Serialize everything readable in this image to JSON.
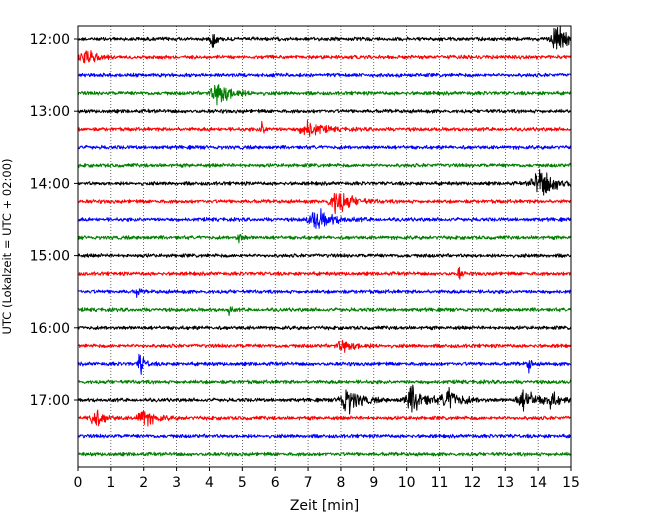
{
  "chart_data": {
    "type": "line",
    "subtype": "helicorder",
    "xlabel": "Zeit  [min]",
    "ylabel": "UTC (Lokalzeit = UTC + 02:00)",
    "xlim": [
      0,
      15
    ],
    "x_ticks": [
      "0",
      "1",
      "2",
      "3",
      "4",
      "5",
      "6",
      "7",
      "8",
      "9",
      "10",
      "11",
      "12",
      "13",
      "14",
      "15"
    ],
    "y_ticks": [
      "12:00",
      "13:00",
      "14:00",
      "15:00",
      "16:00",
      "17:00"
    ],
    "grid": "vertical dotted lines at each minute",
    "trace_colors": [
      "#000000",
      "#ff0000",
      "#0000ff",
      "#008000"
    ],
    "rows_per_hour": 4,
    "traces": [
      {
        "start": "12:00",
        "color": "#000000",
        "base_amplitude": 1.0,
        "events": [
          {
            "t": 4.1,
            "amp": 3.5,
            "dur": 0.15
          },
          {
            "t": 14.6,
            "amp": 4.5,
            "dur": 0.5
          }
        ]
      },
      {
        "start": "12:15",
        "color": "#ff0000",
        "base_amplitude": 1.0,
        "events": [
          {
            "t": 0.2,
            "amp": 3.5,
            "dur": 0.4
          }
        ]
      },
      {
        "start": "12:30",
        "color": "#0000ff",
        "base_amplitude": 1.0,
        "events": []
      },
      {
        "start": "12:45",
        "color": "#008000",
        "base_amplitude": 1.0,
        "events": [
          {
            "t": 4.3,
            "amp": 4.5,
            "dur": 0.6
          }
        ]
      },
      {
        "start": "13:00",
        "color": "#000000",
        "base_amplitude": 1.0,
        "events": []
      },
      {
        "start": "13:15",
        "color": "#ff0000",
        "base_amplitude": 1.0,
        "events": [
          {
            "t": 5.6,
            "amp": 2.5,
            "dur": 0.15
          },
          {
            "t": 7.0,
            "amp": 3.0,
            "dur": 0.6
          }
        ]
      },
      {
        "start": "13:30",
        "color": "#0000ff",
        "base_amplitude": 1.0,
        "events": []
      },
      {
        "start": "13:45",
        "color": "#008000",
        "base_amplitude": 1.0,
        "events": []
      },
      {
        "start": "14:00",
        "color": "#000000",
        "base_amplitude": 1.0,
        "events": [
          {
            "t": 14.1,
            "amp": 5.0,
            "dur": 0.7
          }
        ]
      },
      {
        "start": "14:15",
        "color": "#ff0000",
        "base_amplitude": 1.0,
        "events": [
          {
            "t": 7.9,
            "amp": 4.5,
            "dur": 0.6
          }
        ]
      },
      {
        "start": "14:30",
        "color": "#0000ff",
        "base_amplitude": 1.0,
        "events": [
          {
            "t": 7.3,
            "amp": 3.5,
            "dur": 0.7
          }
        ]
      },
      {
        "start": "14:45",
        "color": "#008000",
        "base_amplitude": 1.0,
        "events": [
          {
            "t": 4.9,
            "amp": 2.0,
            "dur": 0.15
          }
        ]
      },
      {
        "start": "15:00",
        "color": "#000000",
        "base_amplitude": 1.0,
        "events": []
      },
      {
        "start": "15:15",
        "color": "#ff0000",
        "base_amplitude": 1.0,
        "events": [
          {
            "t": 11.6,
            "amp": 2.5,
            "dur": 0.1
          }
        ]
      },
      {
        "start": "15:30",
        "color": "#0000ff",
        "base_amplitude": 1.0,
        "events": [
          {
            "t": 1.8,
            "amp": 2.5,
            "dur": 0.1
          }
        ]
      },
      {
        "start": "15:45",
        "color": "#008000",
        "base_amplitude": 1.0,
        "events": [
          {
            "t": 4.6,
            "amp": 2.0,
            "dur": 0.1
          }
        ]
      },
      {
        "start": "16:00",
        "color": "#000000",
        "base_amplitude": 1.0,
        "events": []
      },
      {
        "start": "16:15",
        "color": "#ff0000",
        "base_amplitude": 1.0,
        "events": [
          {
            "t": 8.1,
            "amp": 2.0,
            "dur": 0.6
          }
        ]
      },
      {
        "start": "16:30",
        "color": "#0000ff",
        "base_amplitude": 1.0,
        "events": [
          {
            "t": 1.9,
            "amp": 4.0,
            "dur": 0.2
          },
          {
            "t": 13.7,
            "amp": 4.0,
            "dur": 0.1
          }
        ]
      },
      {
        "start": "16:45",
        "color": "#008000",
        "base_amplitude": 1.0,
        "events": []
      },
      {
        "start": "17:00",
        "color": "#000000",
        "base_amplitude": 1.0,
        "events": [
          {
            "t": 8.2,
            "amp": 4.5,
            "dur": 0.6
          },
          {
            "t": 10.2,
            "amp": 4.5,
            "dur": 0.6
          },
          {
            "t": 11.3,
            "amp": 3.5,
            "dur": 0.6
          },
          {
            "t": 13.6,
            "amp": 3.5,
            "dur": 0.6
          },
          {
            "t": 14.4,
            "amp": 3.0,
            "dur": 0.3
          }
        ]
      },
      {
        "start": "17:15",
        "color": "#ff0000",
        "base_amplitude": 1.0,
        "events": [
          {
            "t": 0.5,
            "amp": 3.5,
            "dur": 0.4
          },
          {
            "t": 2.0,
            "amp": 3.0,
            "dur": 0.5
          }
        ]
      },
      {
        "start": "17:30",
        "color": "#0000ff",
        "base_amplitude": 1.0,
        "events": []
      },
      {
        "start": "17:45",
        "color": "#008000",
        "base_amplitude": 1.0,
        "events": []
      }
    ]
  }
}
